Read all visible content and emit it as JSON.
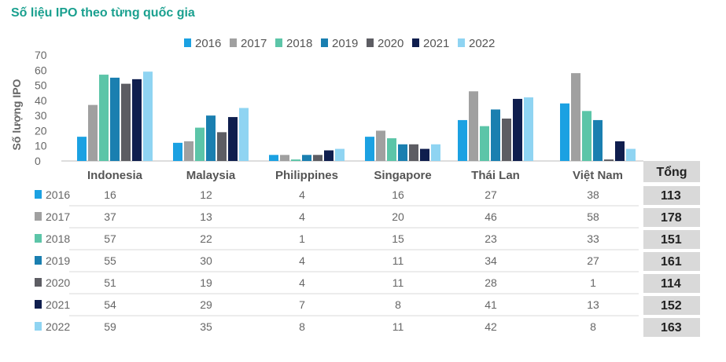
{
  "title": "Số liệu IPO theo từng quốc gia",
  "chart_data": {
    "type": "bar",
    "title": "Số liệu IPO theo từng quốc gia",
    "ylabel": "Số lượng IPO",
    "xlabel": "",
    "ylim": [
      0,
      70
    ],
    "yticks": [
      0,
      10,
      20,
      30,
      40,
      50,
      60,
      70
    ],
    "legend_position": "top",
    "categories": [
      "Indonesia",
      "Malaysia",
      "Philippines",
      "Singapore",
      "Thái Lan",
      "Việt Nam"
    ],
    "series": [
      {
        "name": "2016",
        "color": "#1ba1e2",
        "values": [
          16,
          12,
          4,
          16,
          27,
          38
        ],
        "total": 113
      },
      {
        "name": "2017",
        "color": "#a0a0a0",
        "values": [
          37,
          13,
          4,
          20,
          46,
          58
        ],
        "total": 178
      },
      {
        "name": "2018",
        "color": "#5cc5a8",
        "values": [
          57,
          22,
          1,
          15,
          23,
          33
        ],
        "total": 151
      },
      {
        "name": "2019",
        "color": "#1a7fb0",
        "values": [
          55,
          30,
          4,
          11,
          34,
          27
        ],
        "total": 161
      },
      {
        "name": "2020",
        "color": "#5d5d63",
        "values": [
          51,
          19,
          4,
          11,
          28,
          1
        ],
        "total": 114
      },
      {
        "name": "2021",
        "color": "#0f1e4e",
        "values": [
          54,
          29,
          7,
          8,
          41,
          13
        ],
        "total": 152
      },
      {
        "name": "2022",
        "color": "#8fd4f2",
        "values": [
          59,
          35,
          8,
          11,
          42,
          8
        ],
        "total": 163
      }
    ],
    "total_header": "Tổng"
  }
}
